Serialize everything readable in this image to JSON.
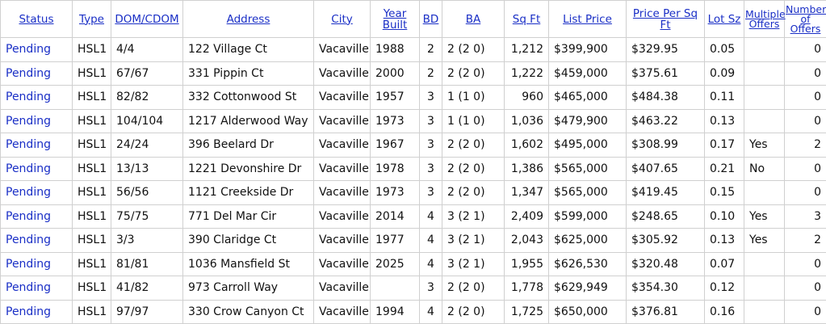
{
  "table": {
    "headers": [
      "Status",
      "Type",
      "DOM/CDOM",
      "Address",
      "City",
      "Year Built",
      "BD",
      "BA",
      "Sq Ft",
      "List Price",
      "Price Per Sq Ft",
      "Lot Sz",
      "Multiple Offers",
      "Number of Offers"
    ],
    "rows": [
      [
        "Pending",
        "HSL1",
        "4/4",
        "122 Village Ct",
        "Vacaville",
        "1988",
        "2",
        "2 (2 0)",
        "1,212",
        "$399,900",
        "$329.95",
        "0.05",
        null,
        "0"
      ],
      [
        "Pending",
        "HSL1",
        "67/67",
        "331 Pippin Ct",
        "Vacaville",
        "2000",
        "2",
        "2 (2 0)",
        "1,222",
        "$459,000",
        "$375.61",
        "0.09",
        null,
        "0"
      ],
      [
        "Pending",
        "HSL1",
        "82/82",
        "332 Cottonwood St",
        "Vacaville",
        "1957",
        "3",
        "1 (1 0)",
        "960",
        "$465,000",
        "$484.38",
        "0.11",
        null,
        "0"
      ],
      [
        "Pending",
        "HSL1",
        "104/104",
        "1217 Alderwood Way",
        "Vacaville",
        "1973",
        "3",
        "1 (1 0)",
        "1,036",
        "$479,900",
        "$463.22",
        "0.13",
        null,
        "0"
      ],
      [
        "Pending",
        "HSL1",
        "24/24",
        "396 Beelard Dr",
        "Vacaville",
        "1967",
        "3",
        "2 (2 0)",
        "1,602",
        "$495,000",
        "$308.99",
        "0.17",
        "Yes",
        "2"
      ],
      [
        "Pending",
        "HSL1",
        "13/13",
        "1221 Devonshire Dr",
        "Vacaville",
        "1978",
        "3",
        "2 (2 0)",
        "1,386",
        "$565,000",
        "$407.65",
        "0.21",
        "No",
        "0"
      ],
      [
        "Pending",
        "HSL1",
        "56/56",
        "1121 Creekside Dr",
        "Vacaville",
        "1973",
        "3",
        "2 (2 0)",
        "1,347",
        "$565,000",
        "$419.45",
        "0.15",
        null,
        "0"
      ],
      [
        "Pending",
        "HSL1",
        "75/75",
        "771 Del Mar Cir",
        "Vacaville",
        "2014",
        "4",
        "3 (2 1)",
        "2,409",
        "$599,000",
        "$248.65",
        "0.10",
        "Yes",
        "3"
      ],
      [
        "Pending",
        "HSL1",
        "3/3",
        "390 Claridge Ct",
        "Vacaville",
        "1977",
        "4",
        "3 (2 1)",
        "2,043",
        "$625,000",
        "$305.92",
        "0.13",
        "Yes",
        "2"
      ],
      [
        "Pending",
        "HSL1",
        "81/81",
        "1036 Mansfield St",
        "Vacaville",
        "2025",
        "4",
        "3 (2 1)",
        "1,955",
        "$626,530",
        "$320.48",
        "0.07",
        null,
        "0"
      ],
      [
        "Pending",
        "HSL1",
        "41/82",
        "973 Carroll Way",
        "Vacaville",
        null,
        "3",
        "2 (2 0)",
        "1,778",
        "$629,949",
        "$354.30",
        "0.12",
        null,
        "0"
      ],
      [
        "Pending",
        "HSL1",
        "97/97",
        "330 Crow Canyon Ct",
        "Vacaville",
        "1994",
        "4",
        "2 (2 0)",
        "1,725",
        "$650,000",
        "$376.81",
        "0.16",
        null,
        "0"
      ]
    ]
  }
}
